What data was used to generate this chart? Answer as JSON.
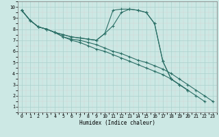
{
  "xlabel": "Humidex (Indice chaleur)",
  "bg_color": "#cce8e4",
  "grid_color_major": "#aad0cc",
  "grid_color_minor": "#bbdcd8",
  "line_color": "#2a6e65",
  "xlim": [
    -0.5,
    23.5
  ],
  "ylim": [
    1,
    10
  ],
  "xticks": [
    0,
    1,
    2,
    3,
    4,
    5,
    6,
    7,
    8,
    9,
    10,
    11,
    12,
    13,
    14,
    15,
    16,
    17,
    18,
    19,
    20,
    21,
    22,
    23
  ],
  "yticks": [
    1,
    2,
    3,
    4,
    5,
    6,
    7,
    8,
    9,
    10
  ],
  "hump_x": [
    0,
    1,
    2,
    3,
    4,
    5,
    6,
    7,
    8,
    9,
    10,
    11,
    12,
    13,
    14,
    15,
    16,
    17,
    18,
    19,
    20
  ],
  "hump_y": [
    9.7,
    8.8,
    8.2,
    8.0,
    7.7,
    7.5,
    7.3,
    7.2,
    7.1,
    7.0,
    7.6,
    9.7,
    9.8,
    9.8,
    9.7,
    9.5,
    8.5,
    5.1,
    3.5,
    3.0,
    2.5
  ],
  "hump2_x": [
    0,
    1,
    2,
    3,
    4,
    5,
    6,
    7,
    8,
    9,
    10,
    11,
    12,
    13,
    14,
    15,
    16,
    17,
    18,
    19,
    20
  ],
  "hump2_y": [
    9.7,
    8.8,
    8.2,
    8.0,
    7.7,
    7.5,
    7.3,
    7.2,
    7.1,
    7.0,
    7.6,
    8.3,
    9.5,
    9.8,
    9.7,
    9.5,
    8.5,
    5.1,
    3.5,
    3.0,
    2.5
  ],
  "decline1_x": [
    0,
    1,
    2,
    3,
    4,
    5,
    6,
    7,
    8,
    9,
    10,
    11,
    12,
    13,
    14,
    15,
    16,
    17,
    18,
    19,
    20,
    21,
    22,
    23
  ],
  "decline1_y": [
    9.7,
    8.8,
    8.2,
    8.0,
    7.7,
    7.3,
    7.1,
    7.0,
    6.8,
    6.6,
    6.3,
    6.0,
    5.8,
    5.5,
    5.2,
    5.0,
    4.7,
    4.4,
    4.0,
    3.5,
    3.0,
    2.5,
    2.0,
    1.5
  ],
  "decline2_x": [
    0,
    1,
    2,
    3,
    4,
    5,
    6,
    7,
    8,
    9,
    10,
    11,
    12,
    13,
    14,
    15,
    16,
    17,
    18,
    19,
    20,
    21,
    22
  ],
  "decline2_y": [
    9.7,
    8.8,
    8.2,
    8.0,
    7.7,
    7.3,
    7.0,
    6.8,
    6.5,
    6.2,
    6.0,
    5.7,
    5.4,
    5.1,
    4.8,
    4.5,
    4.2,
    3.9,
    3.5,
    3.0,
    2.5,
    2.0,
    1.5
  ]
}
